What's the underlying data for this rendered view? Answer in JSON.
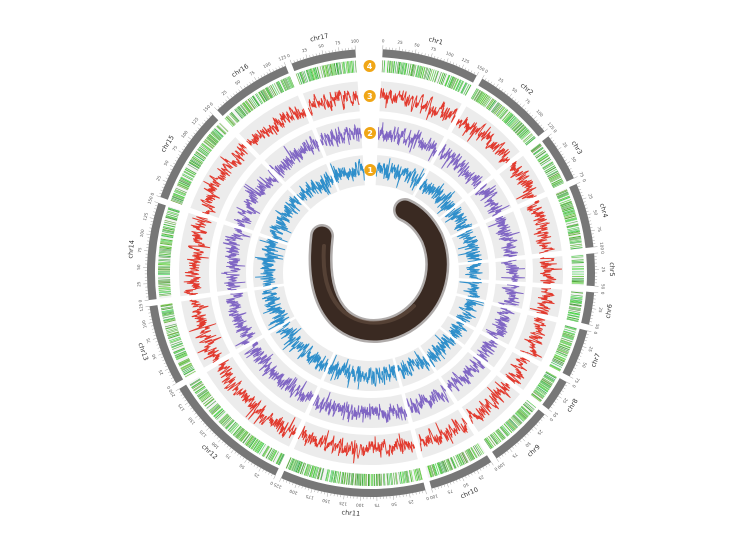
{
  "chromosomes": [
    {
      "name": "chr1",
      "length": 150
    },
    {
      "name": "chr2",
      "length": 125
    },
    {
      "name": "chr3",
      "length": 75
    },
    {
      "name": "chr4",
      "length": 100
    },
    {
      "name": "chr5",
      "length": 50
    },
    {
      "name": "chr6",
      "length": 50
    },
    {
      "name": "chr7",
      "length": 75
    },
    {
      "name": "chr8",
      "length": 50
    },
    {
      "name": "chr9",
      "length": 100
    },
    {
      "name": "chr10",
      "length": 100
    },
    {
      "name": "chr11",
      "length": 225
    },
    {
      "name": "chr12",
      "length": 200
    },
    {
      "name": "chr13",
      "length": 125
    },
    {
      "name": "chr14",
      "length": 150
    },
    {
      "name": "chr15",
      "length": 150
    },
    {
      "name": "chr16",
      "length": 125
    },
    {
      "name": "chr17",
      "length": 100
    }
  ],
  "track_badges": [
    "1",
    "2",
    "3",
    "4"
  ],
  "tracks": [
    {
      "id": "1",
      "type": "line",
      "color": "#2f8fcb"
    },
    {
      "id": "2",
      "type": "line",
      "color": "#8066c4"
    },
    {
      "id": "3",
      "type": "line",
      "color": "#e23a2e"
    },
    {
      "id": "4",
      "type": "density",
      "color": "#3fa63b"
    }
  ],
  "colors": {
    "ideogram": "#777777",
    "track_background": "#ececec",
    "badge": "#f0a616",
    "center_specimen": "#3a2a22"
  },
  "center_image": "earthworm-specimen"
}
